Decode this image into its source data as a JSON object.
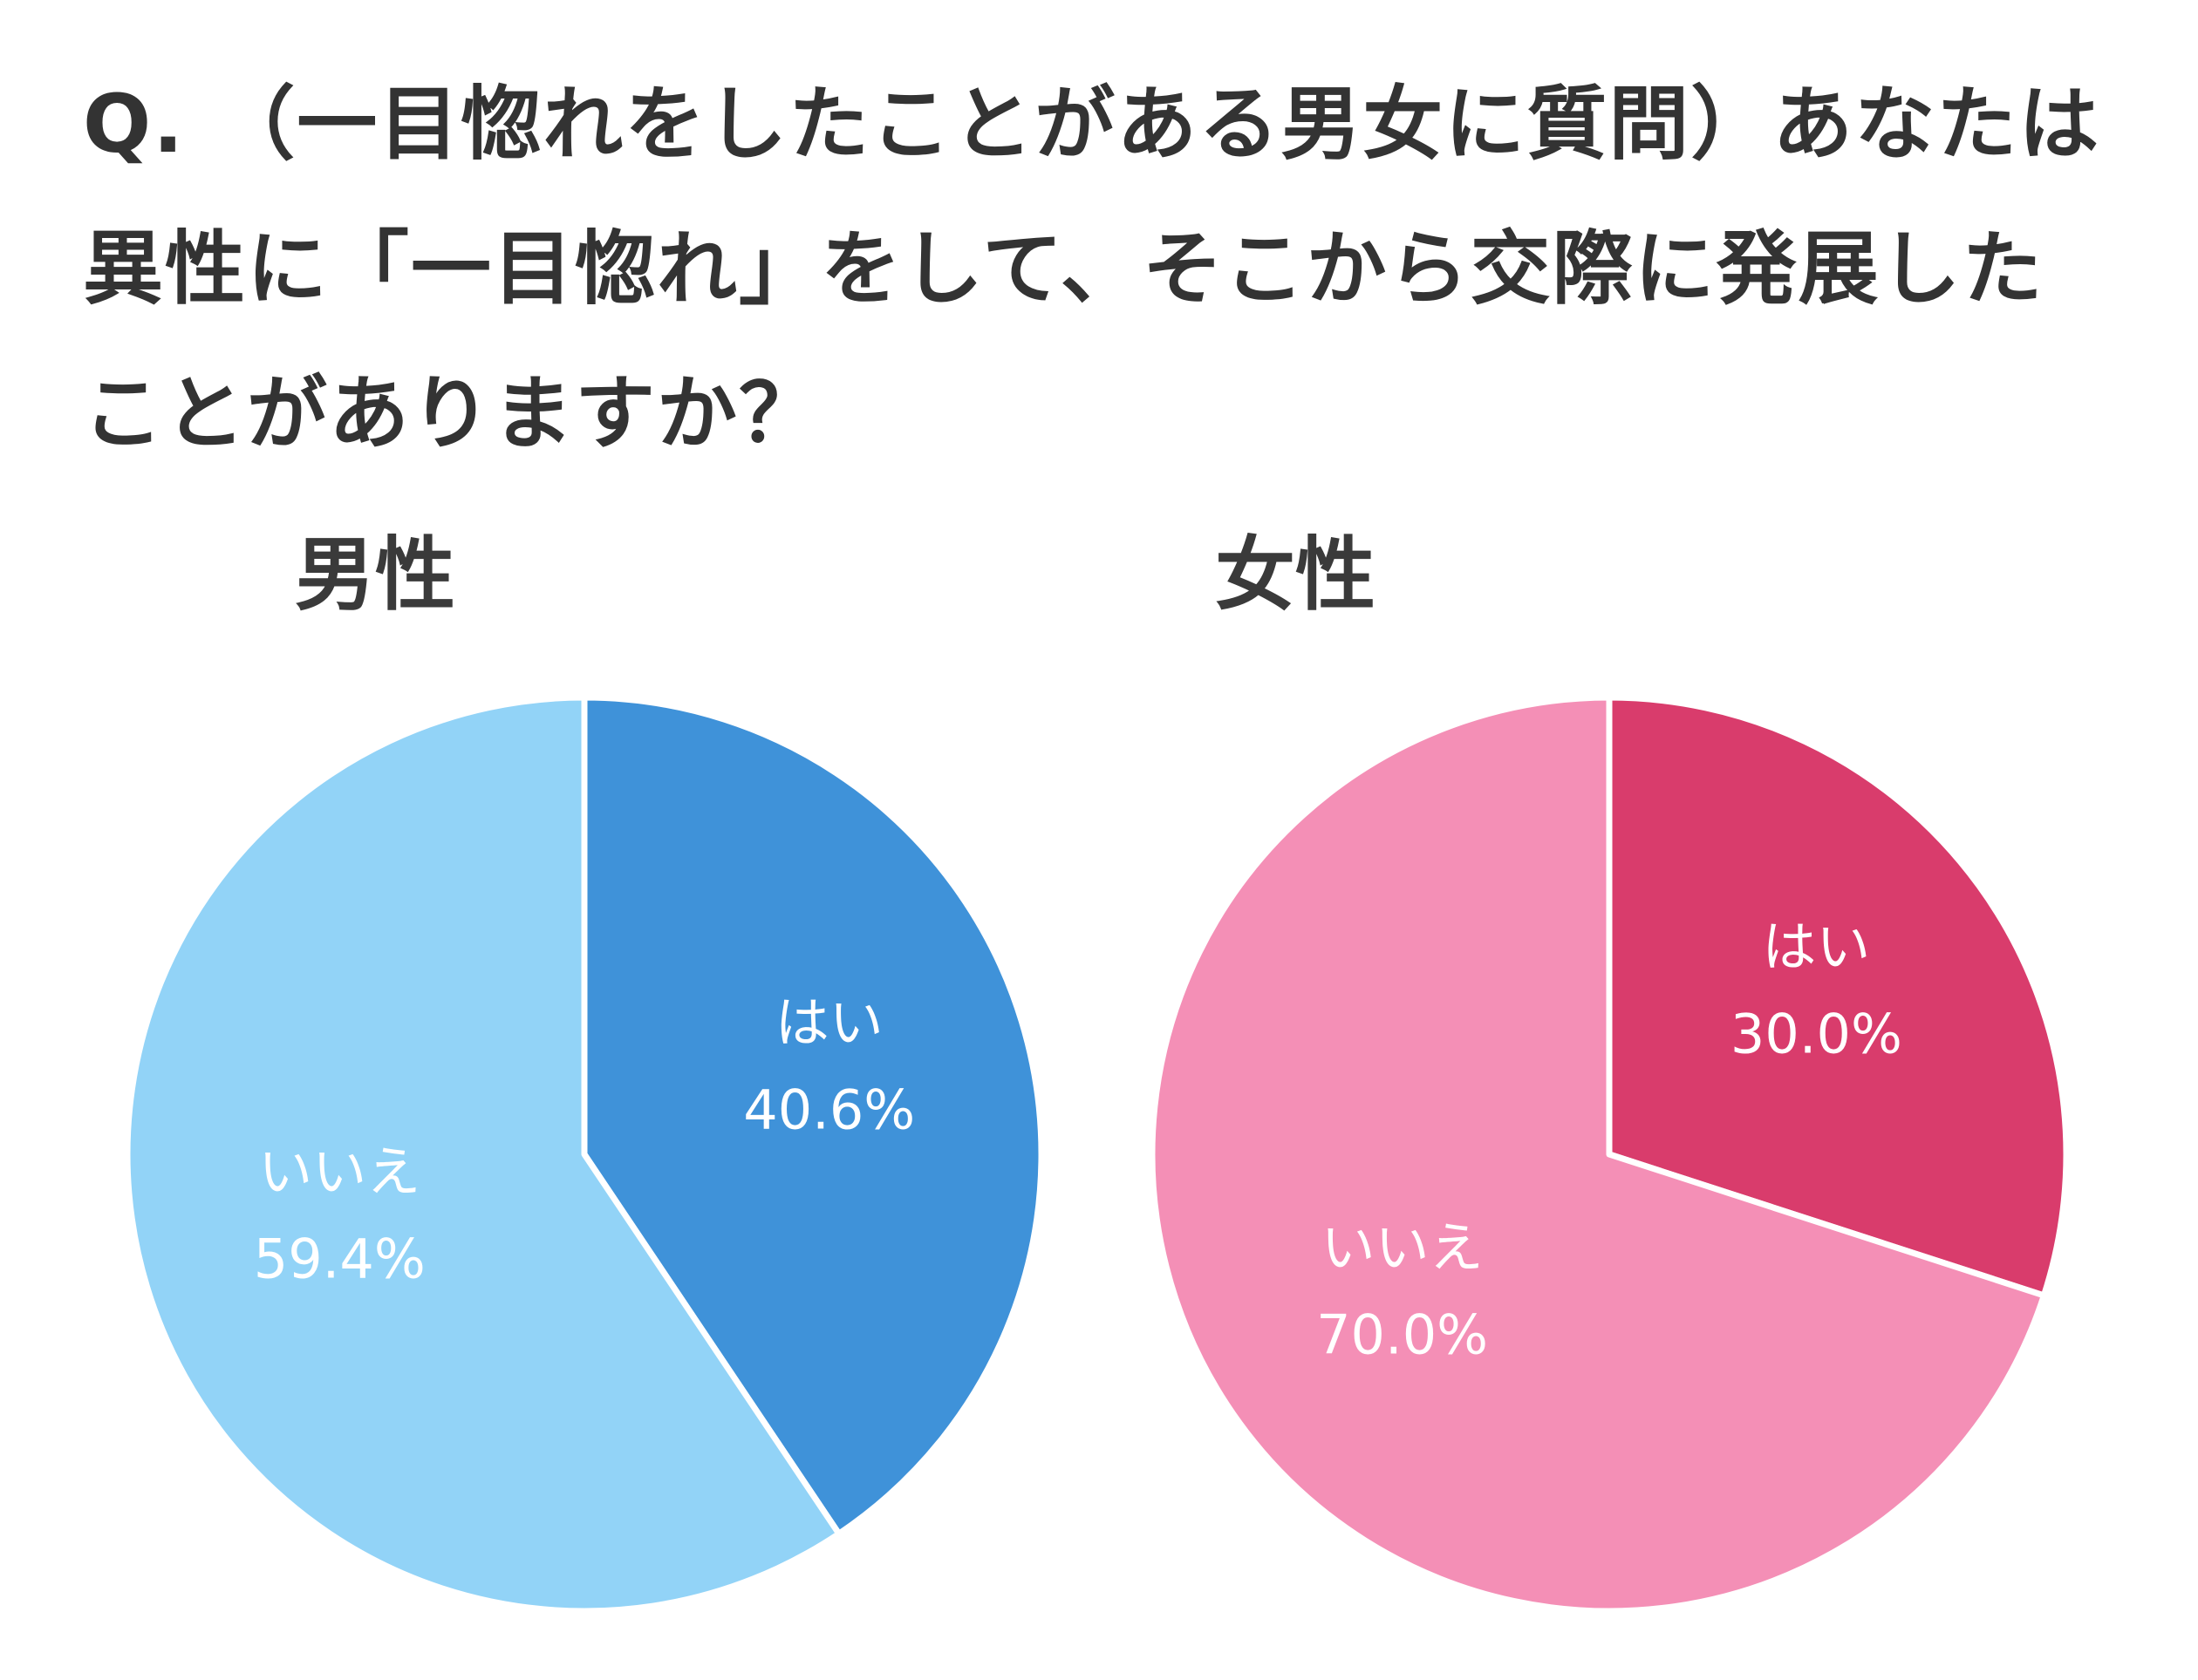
{
  "question": "Q. （一目惚れをしたことがある男女に質問）あなたは異性に「一目惚れ」をして、そこから交際に発展したことがありますか？",
  "chart_data": [
    {
      "type": "pie",
      "title": "男性",
      "slices": [
        {
          "label": "はい",
          "value": 40.6,
          "display": "40.6%",
          "color": "#3f92d9"
        },
        {
          "label": "いいえ",
          "value": 59.4,
          "display": "59.4%",
          "color": "#92d3f7"
        }
      ]
    },
    {
      "type": "pie",
      "title": "女性",
      "slices": [
        {
          "label": "はい",
          "value": 30.0,
          "display": "30.0%",
          "color": "#d93c6c"
        },
        {
          "label": "いいえ",
          "value": 70.0,
          "display": "70.0%",
          "color": "#f48fb6"
        }
      ]
    }
  ]
}
